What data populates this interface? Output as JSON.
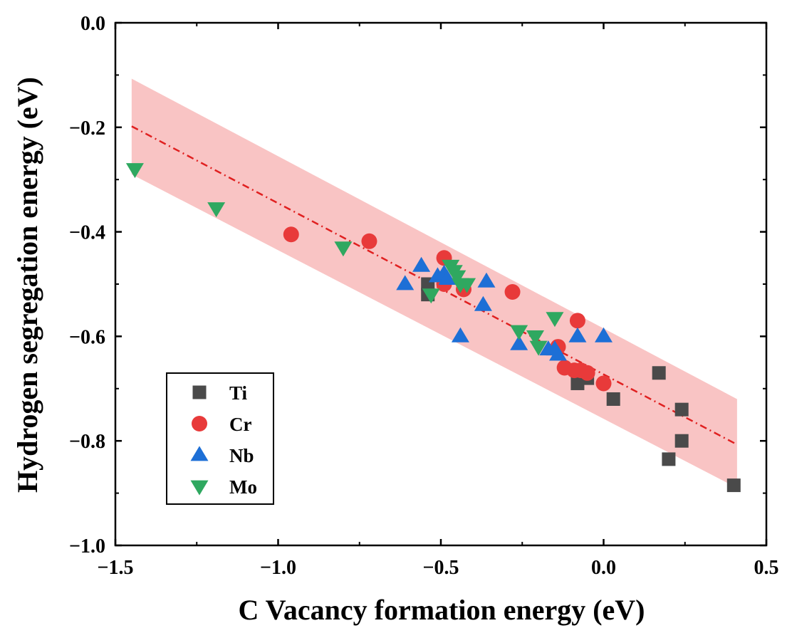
{
  "chart_data": {
    "type": "scatter",
    "xlabel": "C Vacancy formation energy (eV)",
    "ylabel": "Hydrogen segregation energy (eV)",
    "xlim": [
      -1.5,
      0.5
    ],
    "ylim": [
      -1.0,
      0.0
    ],
    "xticks": [
      -1.5,
      -1.0,
      -0.5,
      0.0,
      0.5
    ],
    "xtick_labels": [
      "−1.5",
      "−1.0",
      "−0.5",
      "0.0",
      "0.5"
    ],
    "yticks": [
      0.0,
      -0.2,
      -0.4,
      -0.6,
      -0.8,
      -1.0
    ],
    "ytick_labels": [
      "0.0",
      "−0.2",
      "−0.4",
      "−0.6",
      "−0.8",
      "−1.0"
    ],
    "grid": false,
    "legend_position": "bottom-left",
    "fit_line": {
      "style": "dash-dot",
      "color": "#e02020",
      "x": [
        -1.45,
        0.41
      ],
      "y": [
        -0.198,
        -0.807
      ]
    },
    "confidence_band": {
      "color": "#f9c4c4",
      "x": [
        -1.45,
        0.41
      ],
      "upper": [
        -0.107,
        -0.72
      ],
      "lower": [
        -0.29,
        -0.89
      ]
    },
    "series": [
      {
        "name": "Ti",
        "marker": "square",
        "color": "#4a4a4a",
        "points": [
          [
            -0.54,
            -0.5
          ],
          [
            -0.54,
            -0.52
          ],
          [
            -0.08,
            -0.69
          ],
          [
            -0.05,
            -0.68
          ],
          [
            0.03,
            -0.72
          ],
          [
            0.17,
            -0.67
          ],
          [
            0.24,
            -0.74
          ],
          [
            0.24,
            -0.8
          ],
          [
            0.2,
            -0.835
          ],
          [
            0.4,
            -0.885
          ]
        ]
      },
      {
        "name": "Cr",
        "marker": "circle",
        "color": "#e83a3a",
        "points": [
          [
            -0.96,
            -0.405
          ],
          [
            -0.72,
            -0.418
          ],
          [
            -0.49,
            -0.45
          ],
          [
            -0.49,
            -0.5
          ],
          [
            -0.43,
            -0.51
          ],
          [
            -0.28,
            -0.515
          ],
          [
            -0.14,
            -0.62
          ],
          [
            -0.08,
            -0.57
          ],
          [
            -0.12,
            -0.66
          ],
          [
            -0.09,
            -0.665
          ],
          [
            -0.07,
            -0.665
          ],
          [
            -0.05,
            -0.67
          ],
          [
            0.0,
            -0.69
          ]
        ]
      },
      {
        "name": "Nb",
        "marker": "triangle-up",
        "color": "#1d6fd6",
        "points": [
          [
            -0.61,
            -0.5
          ],
          [
            -0.56,
            -0.465
          ],
          [
            -0.51,
            -0.485
          ],
          [
            -0.49,
            -0.48
          ],
          [
            -0.48,
            -0.49
          ],
          [
            -0.36,
            -0.495
          ],
          [
            -0.37,
            -0.54
          ],
          [
            -0.44,
            -0.6
          ],
          [
            -0.26,
            -0.615
          ],
          [
            -0.17,
            -0.625
          ],
          [
            -0.15,
            -0.625
          ],
          [
            -0.14,
            -0.635
          ],
          [
            -0.08,
            -0.6
          ],
          [
            0.0,
            -0.6
          ]
        ]
      },
      {
        "name": "Mo",
        "marker": "triangle-down",
        "color": "#2fa860",
        "points": [
          [
            -1.44,
            -0.28
          ],
          [
            -1.19,
            -0.355
          ],
          [
            -0.8,
            -0.43
          ],
          [
            -0.53,
            -0.52
          ],
          [
            -0.47,
            -0.465
          ],
          [
            -0.46,
            -0.475
          ],
          [
            -0.45,
            -0.485
          ],
          [
            -0.44,
            -0.5
          ],
          [
            -0.42,
            -0.5
          ],
          [
            -0.26,
            -0.59
          ],
          [
            -0.21,
            -0.6
          ],
          [
            -0.2,
            -0.62
          ],
          [
            -0.15,
            -0.565
          ]
        ]
      }
    ]
  }
}
